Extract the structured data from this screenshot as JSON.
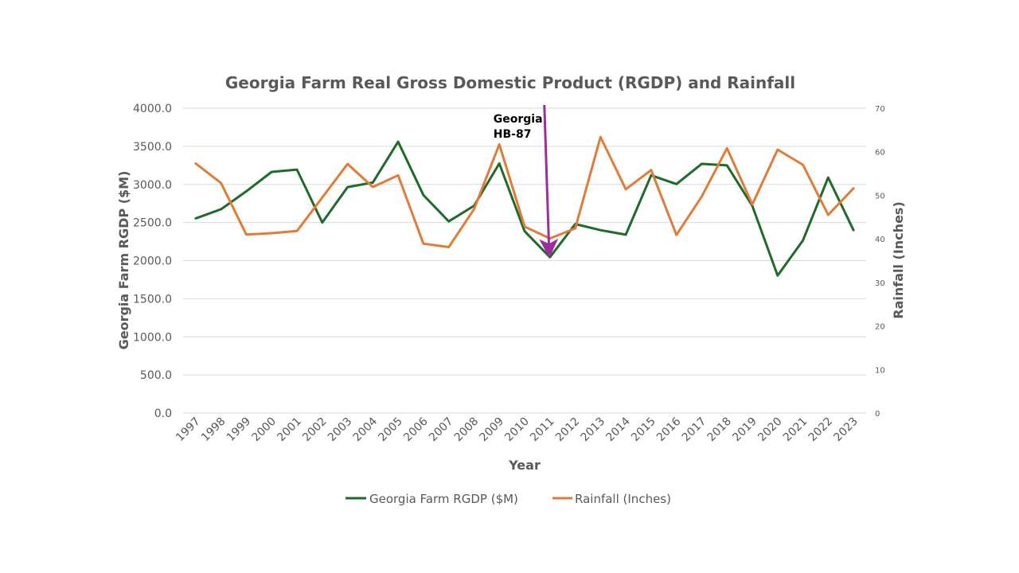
{
  "chart_data": {
    "type": "line",
    "title": "Georgia Farm Real Gross Domestic Product (RGDP) and Rainfall",
    "xlabel": "Year",
    "ylabel": "Georgia Farm RGDP ($M)",
    "y2label": "Rainfall (Inches)",
    "categories": [
      "1997",
      "1998",
      "1999",
      "2000",
      "2001",
      "2002",
      "2003",
      "2004",
      "2005",
      "2006",
      "2007",
      "2008",
      "2009",
      "2010",
      "2011",
      "2012",
      "2013",
      "2014",
      "2015",
      "2016",
      "2017",
      "2018",
      "2019",
      "2020",
      "2021",
      "2022",
      "2023"
    ],
    "ylim": [
      0,
      4000
    ],
    "y_ticks": [
      0,
      500,
      1000,
      1500,
      2000,
      2500,
      3000,
      3500,
      4000
    ],
    "y_tick_labels": [
      "0.0",
      "500.0",
      "1000.0",
      "1500.0",
      "2000.0",
      "2500.0",
      "3000.0",
      "3500.0",
      "4000.0"
    ],
    "y2lim": [
      0,
      70
    ],
    "y2_ticks": [
      0,
      10,
      20,
      30,
      40,
      50,
      60,
      70
    ],
    "y2_tick_labels": [
      "0",
      "10",
      "20",
      "30",
      "40",
      "50",
      "60",
      "70"
    ],
    "grid": true,
    "legend_position": "bottom",
    "series": [
      {
        "name": "Georgia Farm RGDP ($M)",
        "axis": "left",
        "color": "#1e6b2a",
        "values": [
          2555,
          2675,
          2910,
          3165,
          3195,
          2500,
          2965,
          3025,
          3560,
          2860,
          2515,
          2720,
          3275,
          2385,
          2045,
          2480,
          2400,
          2340,
          3120,
          3005,
          3270,
          3250,
          2720,
          1805,
          2265,
          3090,
          2400
        ]
      },
      {
        "name": "Rainfall (Inches)",
        "axis": "right",
        "color": "#e07b39",
        "values": [
          57.3,
          52.8,
          41.0,
          41.3,
          41.8,
          49.5,
          57.2,
          51.9,
          54.6,
          38.9,
          38.1,
          46.8,
          61.7,
          42.8,
          40.1,
          42.4,
          63.4,
          51.4,
          55.8,
          40.9,
          49.7,
          60.8,
          47.9,
          60.5,
          57.0,
          45.5,
          51.6
        ]
      }
    ],
    "annotation": {
      "text_lines": [
        "Georgia",
        "HB-87"
      ],
      "target_category": "2011",
      "arrow_color": "#9b2e9b"
    }
  }
}
